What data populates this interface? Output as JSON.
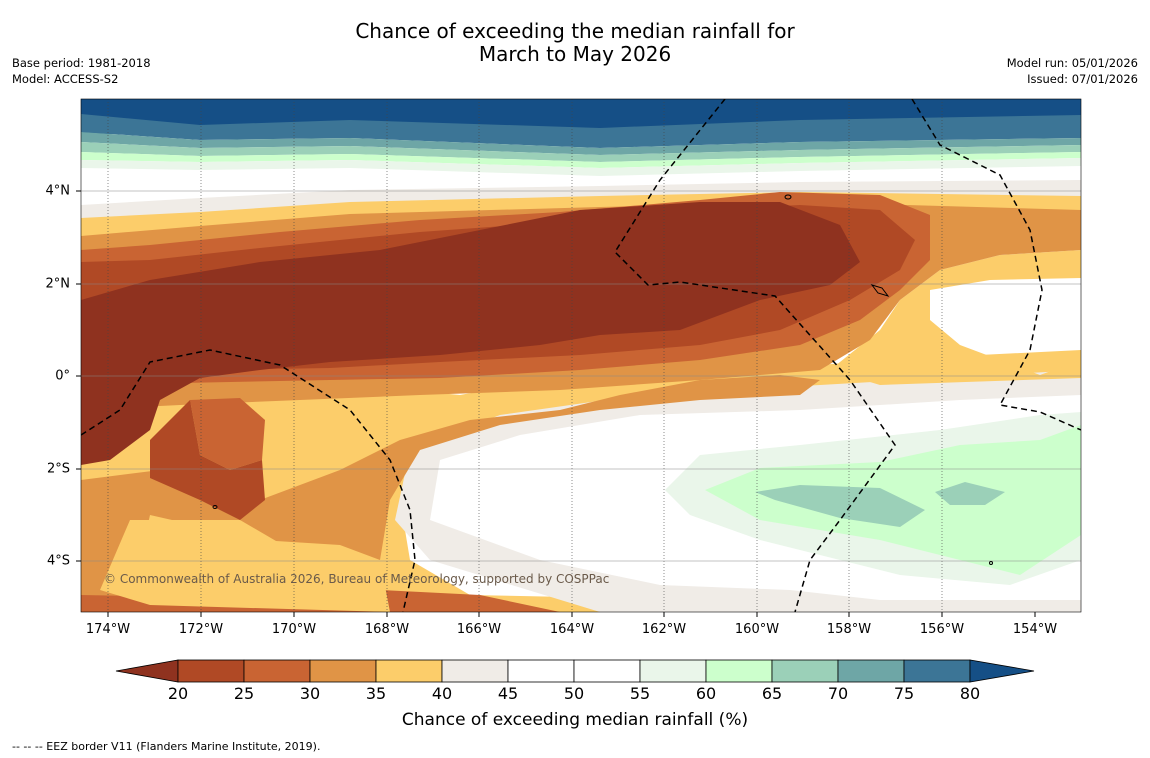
{
  "title": {
    "line1": "Chance of exceeding the median rainfall for",
    "line2": "March to May 2026"
  },
  "meta_left": {
    "base_period": "Base period: 1981-2018",
    "model": "Model: ACCESS-S2"
  },
  "meta_right": {
    "model_run": "Model run: 05/01/2026",
    "issued": "Issued: 07/01/2026"
  },
  "map": {
    "lon_labels": [
      "174°W",
      "172°W",
      "170°W",
      "168°W",
      "166°W",
      "164°W",
      "162°W",
      "160°W",
      "158°W",
      "156°W",
      "154°W"
    ],
    "lat_labels": [
      "4°N",
      "2°N",
      "0°",
      "2°S",
      "4°S"
    ],
    "copyright": "© Commonwealth of Australia 2026, Bureau of Meteorology, supported by COSPPac"
  },
  "colorbar": {
    "ticks": [
      "20",
      "25",
      "30",
      "35",
      "40",
      "45",
      "50",
      "55",
      "60",
      "65",
      "70",
      "75",
      "80"
    ],
    "title": "Chance of exceeding median rainfall (%)",
    "colors": {
      "below20": "#8f321f",
      "20_25": "#b04925",
      "25_30": "#c96433",
      "30_35": "#e09446",
      "35_40": "#fccd6a",
      "40_45": "#f0ece7",
      "45_50": "#ffffff",
      "50_55": "#ffffff",
      "55_60": "#eaf6ea",
      "60_65": "#ccffcc",
      "65_70": "#9bd0b8",
      "70_75": "#6ea6a6",
      "75_80": "#3c7596",
      "above80": "#154f86"
    }
  },
  "footer": "--  --  -- EEZ border V11 (Flanders Marine Institute, 2019)."
}
